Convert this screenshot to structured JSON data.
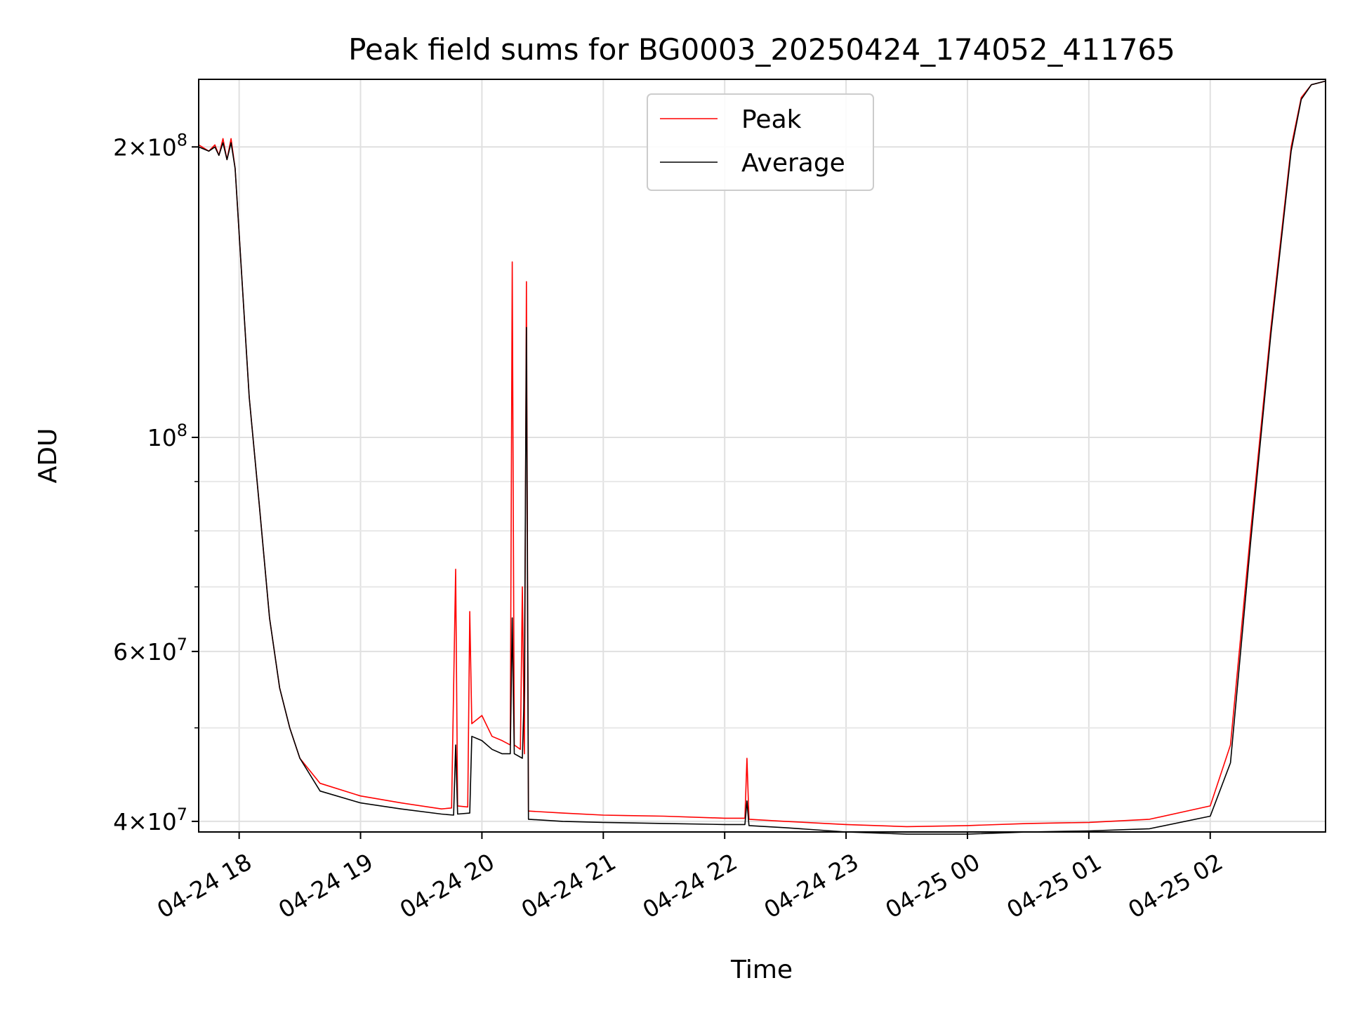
{
  "chart_data": {
    "type": "line",
    "title": "Peak field sums for BG0003_20250424_174052_411765",
    "xlabel": "Time",
    "ylabel": "ADU",
    "y_scale": "log",
    "xlim": [
      "2025-04-24 17:40",
      "2025-04-25 02:57"
    ],
    "ylim": [
      39000000,
      235000000
    ],
    "grid": true,
    "legend_position": "top-center",
    "x_tick_labels": [
      "04-24 18",
      "04-24 19",
      "04-24 20",
      "04-24 21",
      "04-24 22",
      "04-24 23",
      "04-25 00",
      "04-25 01",
      "04-25 02"
    ],
    "x_tick_values": [
      "2025-04-24 18:00",
      "2025-04-24 19:00",
      "2025-04-24 20:00",
      "2025-04-24 21:00",
      "2025-04-24 22:00",
      "2025-04-24 23:00",
      "2025-04-25 00:00",
      "2025-04-25 01:00",
      "2025-04-25 02:00"
    ],
    "y_major_ticks": [
      {
        "value": 40000000,
        "base": "4",
        "exp": "7"
      },
      {
        "value": 60000000,
        "base": "6",
        "exp": "7"
      },
      {
        "value": 100000000,
        "base": "",
        "exp": "8"
      },
      {
        "value": 200000000,
        "base": "2",
        "exp": "8"
      }
    ],
    "y_minor_ticks": [
      50000000,
      70000000,
      80000000,
      90000000,
      300000000
    ],
    "series": [
      {
        "name": "Peak",
        "color": "#ff0000",
        "points": [
          [
            "2025-04-24 17:40",
            201000000
          ],
          [
            "2025-04-24 17:45",
            198000000
          ],
          [
            "2025-04-24 17:48",
            201000000
          ],
          [
            "2025-04-24 17:50",
            196000000
          ],
          [
            "2025-04-24 17:52",
            204000000
          ],
          [
            "2025-04-24 17:54",
            194000000
          ],
          [
            "2025-04-24 17:56",
            204000000
          ],
          [
            "2025-04-24 17:58",
            190000000
          ],
          [
            "2025-04-24 18:05",
            110000000
          ],
          [
            "2025-04-24 18:10",
            85000000
          ],
          [
            "2025-04-24 18:15",
            65000000
          ],
          [
            "2025-04-24 18:20",
            55000000
          ],
          [
            "2025-04-24 18:25",
            50000000
          ],
          [
            "2025-04-24 18:30",
            46500000
          ],
          [
            "2025-04-24 18:40",
            43800000
          ],
          [
            "2025-04-24 19:00",
            42500000
          ],
          [
            "2025-04-24 19:20",
            41800000
          ],
          [
            "2025-04-24 19:40",
            41200000
          ],
          [
            "2025-04-24 19:45",
            41300000
          ],
          [
            "2025-04-24 19:47",
            73000000
          ],
          [
            "2025-04-24 19:48",
            41500000
          ],
          [
            "2025-04-24 19:53",
            41400000
          ],
          [
            "2025-04-24 19:54",
            66000000
          ],
          [
            "2025-04-24 19:55",
            50500000
          ],
          [
            "2025-04-24 20:00",
            51500000
          ],
          [
            "2025-04-24 20:05",
            49000000
          ],
          [
            "2025-04-24 20:10",
            48500000
          ],
          [
            "2025-04-24 20:14",
            48000000
          ],
          [
            "2025-04-24 20:15",
            152000000
          ],
          [
            "2025-04-24 20:16",
            48000000
          ],
          [
            "2025-04-24 20:19",
            47500000
          ],
          [
            "2025-04-24 20:20",
            70000000
          ],
          [
            "2025-04-24 20:21",
            47000000
          ],
          [
            "2025-04-24 20:22",
            145000000
          ],
          [
            "2025-04-24 20:23",
            41000000
          ],
          [
            "2025-04-24 20:40",
            40800000
          ],
          [
            "2025-04-24 21:00",
            40600000
          ],
          [
            "2025-04-24 21:30",
            40500000
          ],
          [
            "2025-04-24 22:00",
            40300000
          ],
          [
            "2025-04-24 22:10",
            40300000
          ],
          [
            "2025-04-24 22:11",
            46500000
          ],
          [
            "2025-04-24 22:12",
            40200000
          ],
          [
            "2025-04-24 22:30",
            40000000
          ],
          [
            "2025-04-24 23:00",
            39700000
          ],
          [
            "2025-04-24 23:30",
            39500000
          ],
          [
            "2025-04-25 00:00",
            39600000
          ],
          [
            "2025-04-25 00:30",
            39800000
          ],
          [
            "2025-04-25 01:00",
            39900000
          ],
          [
            "2025-04-25 01:30",
            40200000
          ],
          [
            "2025-04-25 02:00",
            41500000
          ],
          [
            "2025-04-25 02:10",
            48000000
          ],
          [
            "2025-04-25 02:20",
            80000000
          ],
          [
            "2025-04-25 02:30",
            130000000
          ],
          [
            "2025-04-25 02:40",
            200000000
          ],
          [
            "2025-04-25 02:45",
            225000000
          ],
          [
            "2025-04-25 02:50",
            232000000
          ],
          [
            "2025-04-25 02:57",
            234000000
          ]
        ]
      },
      {
        "name": "Average",
        "color": "#000000",
        "points": [
          [
            "2025-04-24 17:40",
            200000000
          ],
          [
            "2025-04-24 17:45",
            198000000
          ],
          [
            "2025-04-24 17:48",
            200000000
          ],
          [
            "2025-04-24 17:50",
            196000000
          ],
          [
            "2025-04-24 17:52",
            202000000
          ],
          [
            "2025-04-24 17:54",
            194000000
          ],
          [
            "2025-04-24 17:56",
            202000000
          ],
          [
            "2025-04-24 17:58",
            190000000
          ],
          [
            "2025-04-24 18:05",
            110000000
          ],
          [
            "2025-04-24 18:10",
            85000000
          ],
          [
            "2025-04-24 18:15",
            65000000
          ],
          [
            "2025-04-24 18:20",
            55000000
          ],
          [
            "2025-04-24 18:25",
            50000000
          ],
          [
            "2025-04-24 18:30",
            46500000
          ],
          [
            "2025-04-24 18:40",
            43000000
          ],
          [
            "2025-04-24 19:00",
            41800000
          ],
          [
            "2025-04-24 19:20",
            41200000
          ],
          [
            "2025-04-24 19:40",
            40700000
          ],
          [
            "2025-04-24 19:46",
            40600000
          ],
          [
            "2025-04-24 19:47",
            48000000
          ],
          [
            "2025-04-24 19:48",
            40700000
          ],
          [
            "2025-04-24 19:54",
            40800000
          ],
          [
            "2025-04-24 19:55",
            49000000
          ],
          [
            "2025-04-24 20:00",
            48500000
          ],
          [
            "2025-04-24 20:05",
            47500000
          ],
          [
            "2025-04-24 20:10",
            47000000
          ],
          [
            "2025-04-24 20:14",
            47000000
          ],
          [
            "2025-04-24 20:15",
            65000000
          ],
          [
            "2025-04-24 20:16",
            47000000
          ],
          [
            "2025-04-24 20:20",
            46500000
          ],
          [
            "2025-04-24 20:21",
            55000000
          ],
          [
            "2025-04-24 20:22",
            130000000
          ],
          [
            "2025-04-24 20:23",
            40200000
          ],
          [
            "2025-04-24 20:40",
            40000000
          ],
          [
            "2025-04-24 21:00",
            39900000
          ],
          [
            "2025-04-24 21:30",
            39800000
          ],
          [
            "2025-04-24 22:00",
            39700000
          ],
          [
            "2025-04-24 22:10",
            39700000
          ],
          [
            "2025-04-24 22:11",
            42000000
          ],
          [
            "2025-04-24 22:12",
            39600000
          ],
          [
            "2025-04-24 22:30",
            39400000
          ],
          [
            "2025-04-24 23:00",
            39000000
          ],
          [
            "2025-04-24 23:30",
            38800000
          ],
          [
            "2025-04-25 00:00",
            38800000
          ],
          [
            "2025-04-25 00:30",
            39000000
          ],
          [
            "2025-04-25 01:00",
            39100000
          ],
          [
            "2025-04-25 01:30",
            39300000
          ],
          [
            "2025-04-25 02:00",
            40500000
          ],
          [
            "2025-04-25 02:10",
            46000000
          ],
          [
            "2025-04-25 02:20",
            78000000
          ],
          [
            "2025-04-25 02:30",
            128000000
          ],
          [
            "2025-04-25 02:40",
            198000000
          ],
          [
            "2025-04-25 02:45",
            224000000
          ],
          [
            "2025-04-25 02:50",
            232000000
          ],
          [
            "2025-04-25 02:57",
            234000000
          ]
        ]
      }
    ]
  }
}
